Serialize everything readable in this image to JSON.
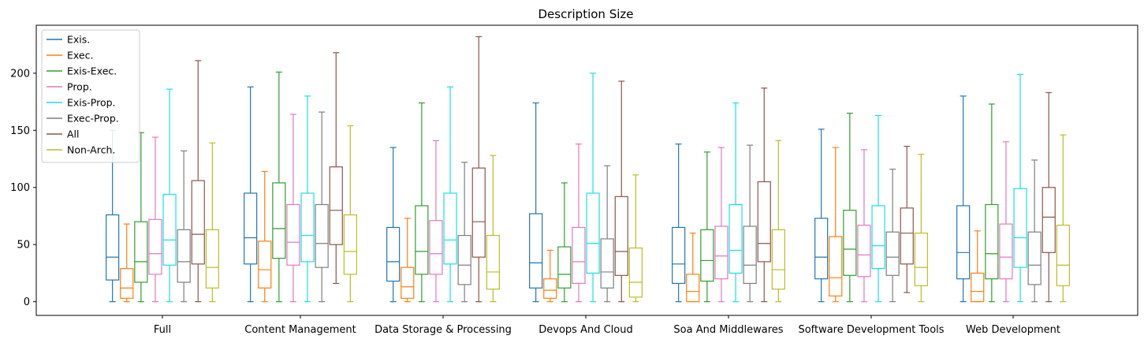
{
  "chart_data": {
    "type": "box",
    "title": "Description Size",
    "xlabel": "",
    "ylabel": "",
    "ylim": [
      -12,
      242
    ],
    "yticks": [
      0,
      50,
      100,
      150,
      200
    ],
    "grid": false,
    "legend_position": "top-left",
    "categories": [
      "Full",
      "Content Management",
      "Data Storage & Processing",
      "Devops And Cloud",
      "Soa And Middlewares",
      "Software Development Tools",
      "Web Development"
    ],
    "series": [
      {
        "name": "Exis.",
        "color": "#1f77b4",
        "boxes": [
          {
            "whislo": 0,
            "q1": 19,
            "med": 39,
            "q3": 76,
            "whishi": 150
          },
          {
            "whislo": 0,
            "q1": 33,
            "med": 56,
            "q3": 95,
            "whishi": 188
          },
          {
            "whislo": 0,
            "q1": 18,
            "med": 35,
            "q3": 65,
            "whishi": 135
          },
          {
            "whislo": 0,
            "q1": 12,
            "med": 34,
            "q3": 77,
            "whishi": 174
          },
          {
            "whislo": 0,
            "q1": 16,
            "med": 33,
            "q3": 65,
            "whishi": 138
          },
          {
            "whislo": 0,
            "q1": 20,
            "med": 39,
            "q3": 73,
            "whishi": 151
          },
          {
            "whislo": 0,
            "q1": 20,
            "med": 43,
            "q3": 84,
            "whishi": 180
          }
        ]
      },
      {
        "name": "Exec.",
        "color": "#ff7f0e",
        "boxes": [
          {
            "whislo": 0,
            "q1": 3,
            "med": 12,
            "q3": 29,
            "whishi": 68
          },
          {
            "whislo": 0,
            "q1": 12,
            "med": 28,
            "q3": 53,
            "whishi": 114
          },
          {
            "whislo": 0,
            "q1": 3,
            "med": 13,
            "q3": 30,
            "whishi": 73
          },
          {
            "whislo": 0,
            "q1": 3,
            "med": 10,
            "q3": 20,
            "whishi": 45
          },
          {
            "whislo": 0,
            "q1": 0,
            "med": 9,
            "q3": 24,
            "whishi": 60
          },
          {
            "whislo": 0,
            "q1": 5,
            "med": 21,
            "q3": 57,
            "whishi": 135
          },
          {
            "whislo": 0,
            "q1": 0,
            "med": 9,
            "q3": 25,
            "whishi": 62
          }
        ]
      },
      {
        "name": "Exis-Exec.",
        "color": "#2ca02c",
        "boxes": [
          {
            "whislo": 0,
            "q1": 17,
            "med": 35,
            "q3": 70,
            "whishi": 148
          },
          {
            "whislo": 0,
            "q1": 38,
            "med": 64,
            "q3": 104,
            "whishi": 201
          },
          {
            "whislo": 0,
            "q1": 24,
            "med": 44,
            "q3": 84,
            "whishi": 174
          },
          {
            "whislo": 0,
            "q1": 12,
            "med": 24,
            "q3": 48,
            "whishi": 104
          },
          {
            "whislo": 0,
            "q1": 18,
            "med": 36,
            "q3": 63,
            "whishi": 131
          },
          {
            "whislo": 0,
            "q1": 23,
            "med": 46,
            "q3": 80,
            "whishi": 165
          },
          {
            "whislo": 0,
            "q1": 20,
            "med": 42,
            "q3": 85,
            "whishi": 173
          }
        ]
      },
      {
        "name": "Prop.",
        "color": "#e377c2",
        "boxes": [
          {
            "whislo": 0,
            "q1": 24,
            "med": 42,
            "q3": 72,
            "whishi": 144
          },
          {
            "whislo": 0,
            "q1": 32,
            "med": 52,
            "q3": 85,
            "whishi": 164
          },
          {
            "whislo": 0,
            "q1": 24,
            "med": 42,
            "q3": 71,
            "whishi": 141
          },
          {
            "whislo": 0,
            "q1": 16,
            "med": 35,
            "q3": 65,
            "whishi": 138
          },
          {
            "whislo": 0,
            "q1": 20,
            "med": 40,
            "q3": 66,
            "whishi": 135
          },
          {
            "whislo": 0,
            "q1": 22,
            "med": 41,
            "q3": 67,
            "whishi": 133
          },
          {
            "whislo": 0,
            "q1": 20,
            "med": 39,
            "q3": 68,
            "whishi": 140
          }
        ]
      },
      {
        "name": "Exis-Prop.",
        "color": "#17e0e8",
        "boxes": [
          {
            "whislo": 0,
            "q1": 32,
            "med": 54,
            "q3": 94,
            "whishi": 186
          },
          {
            "whislo": 0,
            "q1": 35,
            "med": 58,
            "q3": 95,
            "whishi": 180
          },
          {
            "whislo": 0,
            "q1": 33,
            "med": 54,
            "q3": 95,
            "whishi": 188
          },
          {
            "whislo": 0,
            "q1": 25,
            "med": 51,
            "q3": 95,
            "whishi": 200
          },
          {
            "whislo": 0,
            "q1": 25,
            "med": 45,
            "q3": 85,
            "whishi": 174
          },
          {
            "whislo": 0,
            "q1": 29,
            "med": 49,
            "q3": 84,
            "whishi": 163
          },
          {
            "whislo": 0,
            "q1": 30,
            "med": 56,
            "q3": 99,
            "whishi": 199
          }
        ]
      },
      {
        "name": "Exec-Prop.",
        "color": "#7f7f7f",
        "boxes": [
          {
            "whislo": 0,
            "q1": 17,
            "med": 35,
            "q3": 63,
            "whishi": 132
          },
          {
            "whislo": 0,
            "q1": 30,
            "med": 51,
            "q3": 85,
            "whishi": 166
          },
          {
            "whislo": 0,
            "q1": 15,
            "med": 32,
            "q3": 58,
            "whishi": 122
          },
          {
            "whislo": 0,
            "q1": 12,
            "med": 26,
            "q3": 55,
            "whishi": 119
          },
          {
            "whislo": 0,
            "q1": 16,
            "med": 32,
            "q3": 66,
            "whishi": 137
          },
          {
            "whislo": 0,
            "q1": 23,
            "med": 39,
            "q3": 61,
            "whishi": 116
          },
          {
            "whislo": 0,
            "q1": 15,
            "med": 32,
            "q3": 61,
            "whishi": 124
          }
        ]
      },
      {
        "name": "All",
        "color": "#8c564b",
        "boxes": [
          {
            "whislo": 0,
            "q1": 33,
            "med": 59,
            "q3": 106,
            "whishi": 211
          },
          {
            "whislo": 16,
            "q1": 50,
            "med": 80,
            "q3": 118,
            "whishi": 218
          },
          {
            "whislo": 0,
            "q1": 39,
            "med": 70,
            "q3": 117,
            "whishi": 232
          },
          {
            "whislo": 0,
            "q1": 23,
            "med": 44,
            "q3": 92,
            "whishi": 193
          },
          {
            "whislo": 0,
            "q1": 35,
            "med": 51,
            "q3": 105,
            "whishi": 187
          },
          {
            "whislo": 8,
            "q1": 33,
            "med": 60,
            "q3": 82,
            "whishi": 136
          },
          {
            "whislo": 0,
            "q1": 43,
            "med": 74,
            "q3": 100,
            "whishi": 183
          }
        ]
      },
      {
        "name": "Non-Arch.",
        "color": "#bcbd22",
        "boxes": [
          {
            "whislo": 0,
            "q1": 12,
            "med": 30,
            "q3": 63,
            "whishi": 139
          },
          {
            "whislo": 0,
            "q1": 24,
            "med": 44,
            "q3": 76,
            "whishi": 154
          },
          {
            "whislo": 0,
            "q1": 11,
            "med": 26,
            "q3": 58,
            "whishi": 128
          },
          {
            "whislo": 0,
            "q1": 4,
            "med": 17,
            "q3": 47,
            "whishi": 111
          },
          {
            "whislo": 0,
            "q1": 11,
            "med": 28,
            "q3": 63,
            "whishi": 141
          },
          {
            "whislo": 0,
            "q1": 14,
            "med": 30,
            "q3": 60,
            "whishi": 129
          },
          {
            "whislo": 0,
            "q1": 14,
            "med": 32,
            "q3": 67,
            "whishi": 146
          }
        ]
      }
    ]
  }
}
